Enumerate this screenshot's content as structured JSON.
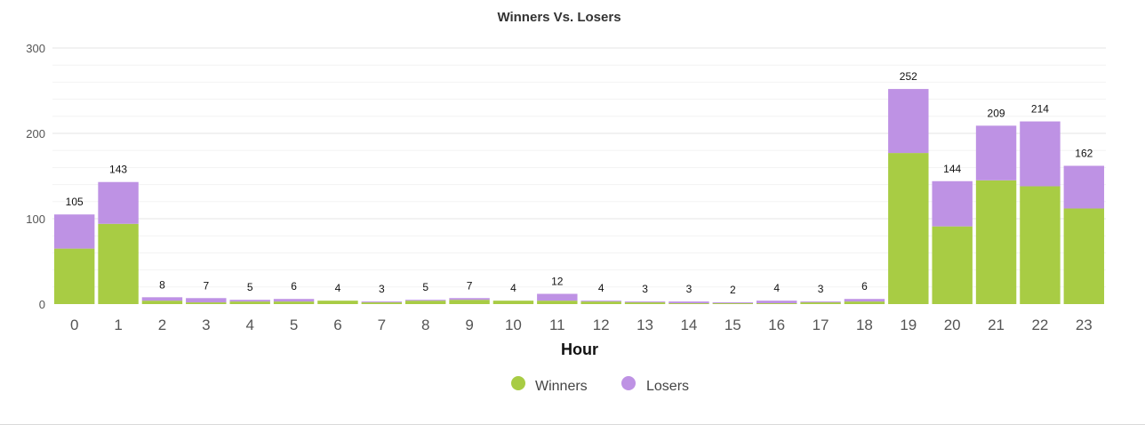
{
  "chart_data": {
    "type": "bar",
    "stacked": true,
    "title": "Winners Vs. Losers",
    "xlabel": "Hour",
    "ylabel": "",
    "ylim": [
      0,
      300
    ],
    "yticks": [
      "0",
      "100",
      "200",
      "300"
    ],
    "categories": [
      "0",
      "1",
      "2",
      "3",
      "4",
      "5",
      "6",
      "7",
      "8",
      "9",
      "10",
      "11",
      "12",
      "13",
      "14",
      "15",
      "16",
      "17",
      "18",
      "19",
      "20",
      "21",
      "22",
      "23"
    ],
    "series": [
      {
        "name": "Winners",
        "color": "#a8cc44",
        "values": [
          65,
          94,
          4,
          2,
          3,
          3,
          4,
          2,
          4,
          5,
          4,
          4,
          3,
          2,
          1,
          1,
          1,
          2,
          3,
          177,
          91,
          145,
          138,
          112
        ]
      },
      {
        "name": "Losers",
        "color": "#be92e4",
        "values": [
          40,
          49,
          4,
          5,
          2,
          3,
          0,
          1,
          1,
          2,
          0,
          8,
          1,
          1,
          2,
          1,
          3,
          1,
          3,
          75,
          53,
          64,
          76,
          50
        ]
      }
    ],
    "totals": [
      "105",
      "143",
      "8",
      "7",
      "5",
      "6",
      "4",
      "3",
      "5",
      "7",
      "4",
      "12",
      "4",
      "3",
      "3",
      "2",
      "4",
      "3",
      "6",
      "252",
      "144",
      "209",
      "214",
      "162"
    ],
    "grid": true,
    "legend_position": "bottom-center"
  },
  "legend": {
    "winners_label": "Winners",
    "losers_label": "Losers"
  }
}
